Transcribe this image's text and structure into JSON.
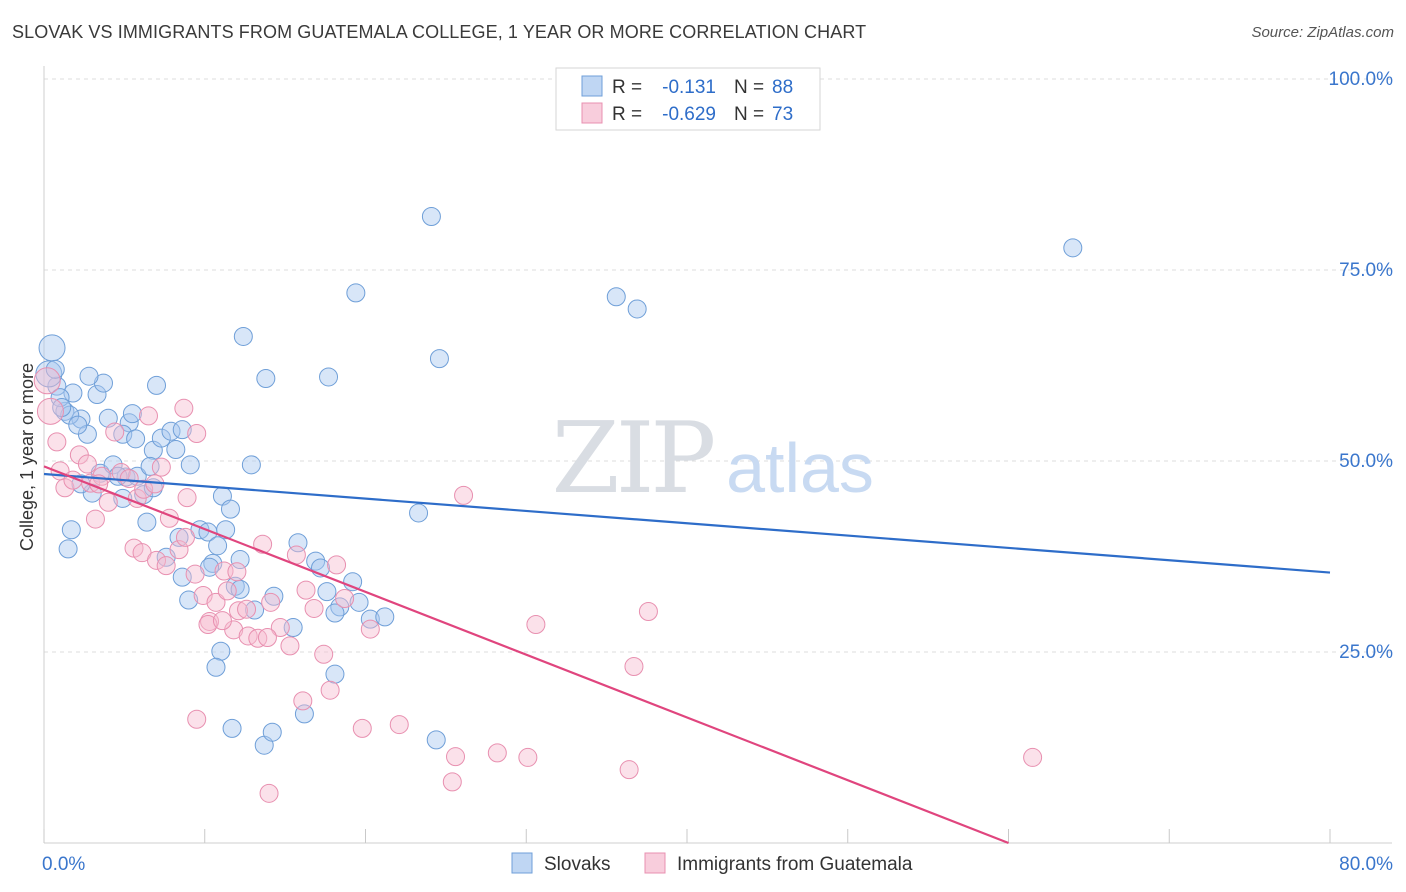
{
  "chart_data": {
    "type": "scatter",
    "title": "SLOVAK VS IMMIGRANTS FROM GUATEMALA COLLEGE, 1 YEAR OR MORE CORRELATION CHART",
    "source": "Source: ZipAtlas.com",
    "xlabel": "",
    "ylabel": "College, 1 year or more",
    "xlim": [
      0,
      80
    ],
    "ylim": [
      0,
      100
    ],
    "x_tick_labels": [
      {
        "value": 0,
        "label": "0.0%"
      },
      {
        "value": 80,
        "label": "80.0%"
      }
    ],
    "y_tick_labels": [
      {
        "value": 25,
        "label": "25.0%"
      },
      {
        "value": 50,
        "label": "50.0%"
      },
      {
        "value": 75,
        "label": "75.0%"
      },
      {
        "value": 100,
        "label": "100.0%"
      }
    ],
    "watermark": {
      "zip": "ZIP",
      "atlas": "atlas"
    },
    "legend_stats": [
      {
        "r_label": "R =",
        "r_value": "-0.131",
        "n_label": "N =",
        "n_value": "88"
      },
      {
        "r_label": "R =",
        "r_value": "-0.629",
        "n_label": "N =",
        "n_value": "73"
      }
    ],
    "series": [
      {
        "name": "Slovaks",
        "color": "#a9c8ef",
        "stroke": "#6f9fd8",
        "line_color": "#2e6dc9",
        "trend": {
          "x": [
            0,
            80
          ],
          "y": [
            48.3,
            35.4
          ]
        },
        "points": [
          [
            0.5,
            64.8
          ],
          [
            0.8,
            59.8
          ],
          [
            1.3,
            56.5
          ],
          [
            1.8,
            58.9
          ],
          [
            2.3,
            55.5
          ],
          [
            2.7,
            53.5
          ],
          [
            3.3,
            58.7
          ],
          [
            3.7,
            60.2
          ],
          [
            4.0,
            55.6
          ],
          [
            0.3,
            61.4
          ],
          [
            1.0,
            58.3
          ],
          [
            1.6,
            56.0
          ],
          [
            2.1,
            54.7
          ],
          [
            2.8,
            61.1
          ],
          [
            3.5,
            48.4
          ],
          [
            4.3,
            49.5
          ],
          [
            5.1,
            47.9
          ],
          [
            5.3,
            55.0
          ],
          [
            5.8,
            48.0
          ],
          [
            6.2,
            45.6
          ],
          [
            6.8,
            51.4
          ],
          [
            7.3,
            53.0
          ],
          [
            7.9,
            53.9
          ],
          [
            8.2,
            51.5
          ],
          [
            9.1,
            49.5
          ],
          [
            4.6,
            48.0
          ],
          [
            4.9,
            45.1
          ],
          [
            5.5,
            56.2
          ],
          [
            6.6,
            49.3
          ],
          [
            7.0,
            59.9
          ],
          [
            8.6,
            54.1
          ],
          [
            6.4,
            42.0
          ],
          [
            7.6,
            37.4
          ],
          [
            8.4,
            40.0
          ],
          [
            9.7,
            41.0
          ],
          [
            10.2,
            40.7
          ],
          [
            11.1,
            45.4
          ],
          [
            10.8,
            38.9
          ],
          [
            11.6,
            43.7
          ],
          [
            10.5,
            36.6
          ],
          [
            12.2,
            37.1
          ],
          [
            11.3,
            41.0
          ],
          [
            12.9,
            49.5
          ],
          [
            13.1,
            30.5
          ],
          [
            14.3,
            32.3
          ],
          [
            11.9,
            33.6
          ],
          [
            10.3,
            36.1
          ],
          [
            15.5,
            28.2
          ],
          [
            16.9,
            36.9
          ],
          [
            17.2,
            36.0
          ],
          [
            17.6,
            32.9
          ],
          [
            15.8,
            39.3
          ],
          [
            18.4,
            30.9
          ],
          [
            19.2,
            34.2
          ],
          [
            18.1,
            30.1
          ],
          [
            19.6,
            31.5
          ],
          [
            20.3,
            29.3
          ],
          [
            21.2,
            29.6
          ],
          [
            23.3,
            43.2
          ],
          [
            12.4,
            66.3
          ],
          [
            13.8,
            60.8
          ],
          [
            17.7,
            61.0
          ],
          [
            19.4,
            72.0
          ],
          [
            24.6,
            63.4
          ],
          [
            35.6,
            71.5
          ],
          [
            36.9,
            69.9
          ],
          [
            64.0,
            77.9
          ],
          [
            4.9,
            53.5
          ],
          [
            9.0,
            31.8
          ],
          [
            12.2,
            33.2
          ],
          [
            11.0,
            25.1
          ],
          [
            10.7,
            23.0
          ],
          [
            11.7,
            15.0
          ],
          [
            13.7,
            12.8
          ],
          [
            14.2,
            14.5
          ],
          [
            16.2,
            16.9
          ],
          [
            18.1,
            22.1
          ],
          [
            24.4,
            13.5
          ],
          [
            24.1,
            82.0
          ],
          [
            8.6,
            34.8
          ],
          [
            5.7,
            52.9
          ],
          [
            3.0,
            45.8
          ],
          [
            2.3,
            47.0
          ],
          [
            1.7,
            41.0
          ],
          [
            1.5,
            38.5
          ],
          [
            0.7,
            62.0
          ],
          [
            1.1,
            57.0
          ],
          [
            6.8,
            46.5
          ]
        ]
      },
      {
        "name": "Immigrants from Guatemala",
        "color": "#f6bcd0",
        "stroke": "#e890b0",
        "line_color": "#e0457e",
        "trend": {
          "x": [
            0,
            60
          ],
          "y": [
            49.3,
            0
          ]
        },
        "points": [
          [
            0.2,
            60.5
          ],
          [
            0.4,
            56.5
          ],
          [
            0.8,
            52.5
          ],
          [
            1.0,
            48.7
          ],
          [
            1.3,
            46.5
          ],
          [
            1.8,
            47.5
          ],
          [
            2.2,
            50.8
          ],
          [
            2.7,
            49.6
          ],
          [
            2.9,
            47.1
          ],
          [
            3.2,
            42.4
          ],
          [
            3.6,
            48.0
          ],
          [
            4.0,
            44.6
          ],
          [
            4.4,
            53.8
          ],
          [
            4.8,
            48.5
          ],
          [
            5.3,
            47.7
          ],
          [
            5.8,
            45.1
          ],
          [
            6.2,
            46.3
          ],
          [
            6.9,
            47.0
          ],
          [
            7.3,
            49.2
          ],
          [
            7.8,
            42.5
          ],
          [
            8.4,
            38.4
          ],
          [
            8.8,
            40.0
          ],
          [
            9.4,
            35.2
          ],
          [
            9.9,
            32.4
          ],
          [
            10.3,
            29.0
          ],
          [
            10.7,
            31.5
          ],
          [
            11.2,
            35.6
          ],
          [
            11.8,
            27.9
          ],
          [
            12.1,
            30.4
          ],
          [
            12.7,
            27.1
          ],
          [
            13.3,
            26.8
          ],
          [
            14.1,
            31.5
          ],
          [
            14.7,
            28.2
          ],
          [
            15.3,
            25.8
          ],
          [
            15.7,
            37.7
          ],
          [
            16.3,
            33.1
          ],
          [
            16.8,
            30.7
          ],
          [
            17.4,
            24.7
          ],
          [
            18.2,
            36.4
          ],
          [
            18.7,
            32.0
          ],
          [
            3.4,
            47.0
          ],
          [
            5.6,
            38.6
          ],
          [
            6.1,
            38.0
          ],
          [
            7.0,
            37.0
          ],
          [
            7.6,
            36.3
          ],
          [
            8.9,
            45.2
          ],
          [
            10.2,
            28.6
          ],
          [
            11.1,
            29.1
          ],
          [
            12.6,
            30.6
          ],
          [
            13.9,
            26.9
          ],
          [
            9.5,
            53.6
          ],
          [
            11.4,
            33.0
          ],
          [
            12.0,
            35.5
          ],
          [
            13.6,
            39.1
          ],
          [
            19.8,
            15.0
          ],
          [
            20.3,
            28.0
          ],
          [
            22.1,
            15.5
          ],
          [
            25.6,
            11.3
          ],
          [
            28.2,
            11.8
          ],
          [
            30.1,
            11.2
          ],
          [
            36.4,
            9.6
          ],
          [
            37.6,
            30.3
          ],
          [
            36.7,
            23.1
          ],
          [
            26.1,
            45.5
          ],
          [
            25.4,
            8.0
          ],
          [
            61.5,
            11.2
          ],
          [
            14.0,
            6.5
          ],
          [
            16.1,
            18.6
          ],
          [
            17.8,
            20.0
          ],
          [
            30.6,
            28.6
          ],
          [
            8.7,
            56.9
          ],
          [
            6.5,
            55.9
          ],
          [
            9.5,
            16.2
          ]
        ]
      }
    ]
  }
}
